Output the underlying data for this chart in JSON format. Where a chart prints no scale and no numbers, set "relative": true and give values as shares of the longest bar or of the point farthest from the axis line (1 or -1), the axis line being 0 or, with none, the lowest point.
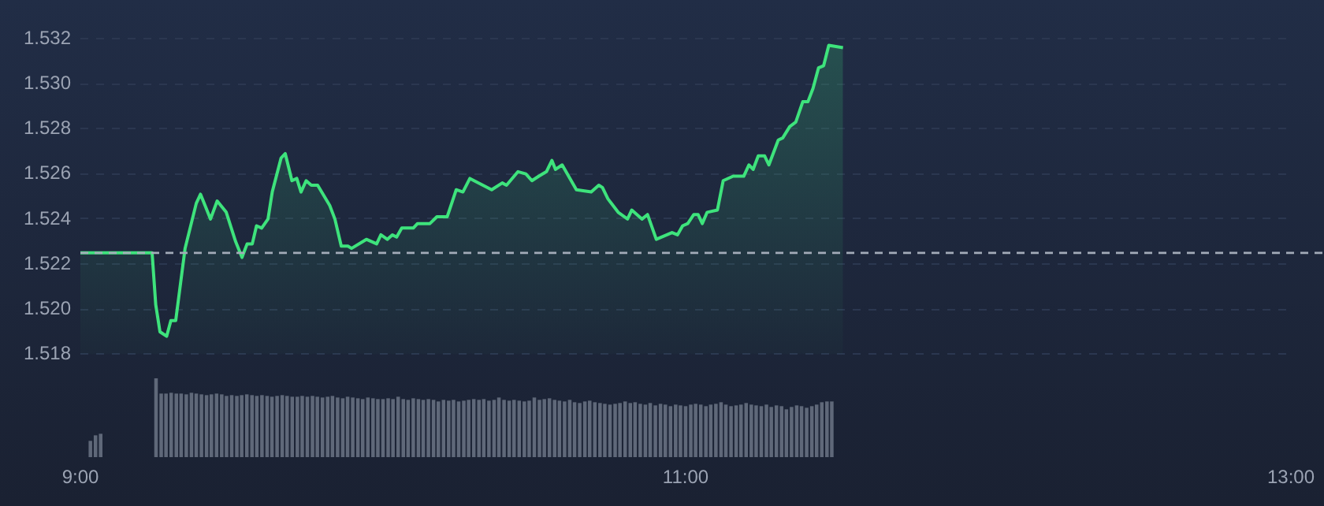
{
  "chart_data": [
    {
      "type": "area",
      "color": "#3ee37c",
      "x": [
        9,
        9.237,
        9.249,
        9.263,
        9.285,
        9.299,
        9.315,
        9.346,
        9.383,
        9.397,
        9.43,
        9.452,
        9.482,
        9.513,
        9.534,
        9.551,
        9.568,
        9.582,
        9.599,
        9.62,
        9.634,
        9.663,
        9.677,
        9.699,
        9.715,
        9.729,
        9.746,
        9.763,
        9.784,
        9.824,
        9.841,
        9.862,
        9.884,
        9.896,
        9.945,
        9.979,
        9.993,
        10.014,
        10.031,
        10.045,
        10.062,
        10.1,
        10.114,
        10.155,
        10.178,
        10.212,
        10.242,
        10.264,
        10.287,
        10.359,
        10.394,
        10.408,
        10.446,
        10.472,
        10.492,
        10.515,
        10.54,
        10.558,
        10.57,
        10.592,
        10.639,
        10.688,
        10.713,
        10.725,
        10.743,
        10.777,
        10.808,
        10.822,
        10.856,
        10.874,
        10.903,
        10.955,
        10.973,
        10.99,
        11.007,
        11.027,
        11.041,
        11.055,
        11.071,
        11.105,
        11.124,
        11.157,
        11.192,
        11.209,
        11.223,
        11.24,
        11.261,
        11.275,
        11.306,
        11.321,
        11.344,
        11.364,
        11.387,
        11.404,
        11.421,
        11.439,
        11.456,
        11.473,
        11.52
      ],
      "values": [
        1.5225,
        1.5225,
        1.5202,
        1.519,
        1.5188,
        1.5195,
        1.5195,
        1.5227,
        1.5247,
        1.5251,
        1.524,
        1.5248,
        1.5243,
        1.523,
        1.5223,
        1.5229,
        1.5229,
        1.5237,
        1.5236,
        1.524,
        1.5252,
        1.5267,
        1.5269,
        1.5257,
        1.5258,
        1.5252,
        1.5257,
        1.5255,
        1.5255,
        1.5246,
        1.524,
        1.5228,
        1.5228,
        1.5227,
        1.5231,
        1.5229,
        1.5233,
        1.5231,
        1.5233,
        1.5232,
        1.5236,
        1.5236,
        1.5238,
        1.5238,
        1.5241,
        1.5241,
        1.5253,
        1.5252,
        1.5258,
        1.5253,
        1.5256,
        1.5255,
        1.5261,
        1.526,
        1.5257,
        1.5259,
        1.5261,
        1.5266,
        1.5262,
        1.5264,
        1.5253,
        1.5252,
        1.5255,
        1.5254,
        1.5249,
        1.5243,
        1.524,
        1.5244,
        1.524,
        1.5242,
        1.5231,
        1.5234,
        1.5233,
        1.5237,
        1.5238,
        1.5242,
        1.5242,
        1.5238,
        1.5243,
        1.5244,
        1.5257,
        1.5259,
        1.5259,
        1.5264,
        1.5262,
        1.5268,
        1.5268,
        1.5264,
        1.5275,
        1.5276,
        1.5281,
        1.5283,
        1.5292,
        1.5292,
        1.5298,
        1.5307,
        1.5308,
        1.5317,
        1.5316
      ],
      "xlim": [
        9,
        13
      ],
      "ylim": [
        1.518,
        1.532
      ],
      "yticks": [
        1.518,
        {
          "value": 1.52,
          "label": "1.520"
        },
        1.522,
        1.524,
        1.526,
        1.528,
        {
          "value": 1.53,
          "label": "1.530"
        },
        1.532
      ],
      "tick_labels": "y",
      "grid": "y",
      "ref_lines": [
        {
          "axis": "y",
          "value": 1.5225,
          "color": "#a3abb8",
          "line_style": "dashed"
        }
      ]
    },
    {
      "type": "bar",
      "color": "#5f6879",
      "relative": true,
      "tick_labels": "x",
      "xlim": [
        9,
        13
      ],
      "xticks": [
        {
          "value": 9,
          "label": "9:00"
        },
        {
          "value": 11,
          "label": "11:00"
        },
        {
          "value": 13,
          "label": "13:00"
        }
      ],
      "x": [
        9.033,
        9.05,
        9.067,
        9.25,
        9.267,
        9.283,
        9.3,
        9.317,
        9.333,
        9.35,
        9.367,
        9.383,
        9.4,
        9.417,
        9.433,
        9.45,
        9.467,
        9.483,
        9.5,
        9.517,
        9.533,
        9.55,
        9.567,
        9.583,
        9.6,
        9.617,
        9.633,
        9.65,
        9.667,
        9.683,
        9.7,
        9.717,
        9.733,
        9.75,
        9.767,
        9.783,
        9.8,
        9.817,
        9.833,
        9.85,
        9.867,
        9.883,
        9.9,
        9.917,
        9.933,
        9.95,
        9.967,
        9.983,
        10,
        10.017,
        10.033,
        10.05,
        10.067,
        10.083,
        10.1,
        10.117,
        10.133,
        10.15,
        10.167,
        10.183,
        10.2,
        10.217,
        10.233,
        10.25,
        10.267,
        10.283,
        10.3,
        10.317,
        10.333,
        10.35,
        10.367,
        10.383,
        10.4,
        10.417,
        10.433,
        10.45,
        10.467,
        10.483,
        10.5,
        10.517,
        10.533,
        10.55,
        10.567,
        10.583,
        10.6,
        10.617,
        10.633,
        10.65,
        10.667,
        10.683,
        10.7,
        10.717,
        10.733,
        10.75,
        10.767,
        10.783,
        10.8,
        10.817,
        10.833,
        10.85,
        10.867,
        10.883,
        10.9,
        10.917,
        10.933,
        10.95,
        10.967,
        10.983,
        11,
        11.017,
        11.033,
        11.05,
        11.067,
        11.083,
        11.1,
        11.117,
        11.133,
        11.15,
        11.167,
        11.183,
        11.2,
        11.217,
        11.233,
        11.25,
        11.267,
        11.283,
        11.3,
        11.317,
        11.333,
        11.35,
        11.367,
        11.383,
        11.4,
        11.417,
        11.433,
        11.45,
        11.467,
        11.483
      ],
      "values": [
        0.2,
        0.27,
        0.29,
        1,
        0.8,
        0.8,
        0.81,
        0.8,
        0.8,
        0.79,
        0.81,
        0.8,
        0.79,
        0.78,
        0.79,
        0.8,
        0.79,
        0.77,
        0.78,
        0.77,
        0.78,
        0.79,
        0.78,
        0.77,
        0.78,
        0.77,
        0.76,
        0.77,
        0.78,
        0.77,
        0.76,
        0.76,
        0.77,
        0.76,
        0.77,
        0.76,
        0.75,
        0.76,
        0.77,
        0.75,
        0.74,
        0.76,
        0.75,
        0.74,
        0.73,
        0.75,
        0.74,
        0.73,
        0.73,
        0.74,
        0.73,
        0.76,
        0.73,
        0.72,
        0.74,
        0.73,
        0.72,
        0.73,
        0.72,
        0.7,
        0.72,
        0.71,
        0.72,
        0.7,
        0.71,
        0.72,
        0.73,
        0.72,
        0.73,
        0.71,
        0.72,
        0.75,
        0.72,
        0.71,
        0.72,
        0.71,
        0.7,
        0.71,
        0.75,
        0.72,
        0.73,
        0.74,
        0.72,
        0.71,
        0.7,
        0.72,
        0.69,
        0.68,
        0.7,
        0.71,
        0.69,
        0.68,
        0.67,
        0.66,
        0.67,
        0.68,
        0.7,
        0.68,
        0.69,
        0.67,
        0.66,
        0.68,
        0.65,
        0.67,
        0.66,
        0.64,
        0.66,
        0.65,
        0.64,
        0.66,
        0.67,
        0.66,
        0.64,
        0.66,
        0.67,
        0.69,
        0.66,
        0.64,
        0.65,
        0.66,
        0.68,
        0.66,
        0.65,
        0.64,
        0.66,
        0.63,
        0.65,
        0.64,
        0.6,
        0.63,
        0.65,
        0.64,
        0.62,
        0.64,
        0.66,
        0.69,
        0.7,
        0.7
      ]
    }
  ]
}
